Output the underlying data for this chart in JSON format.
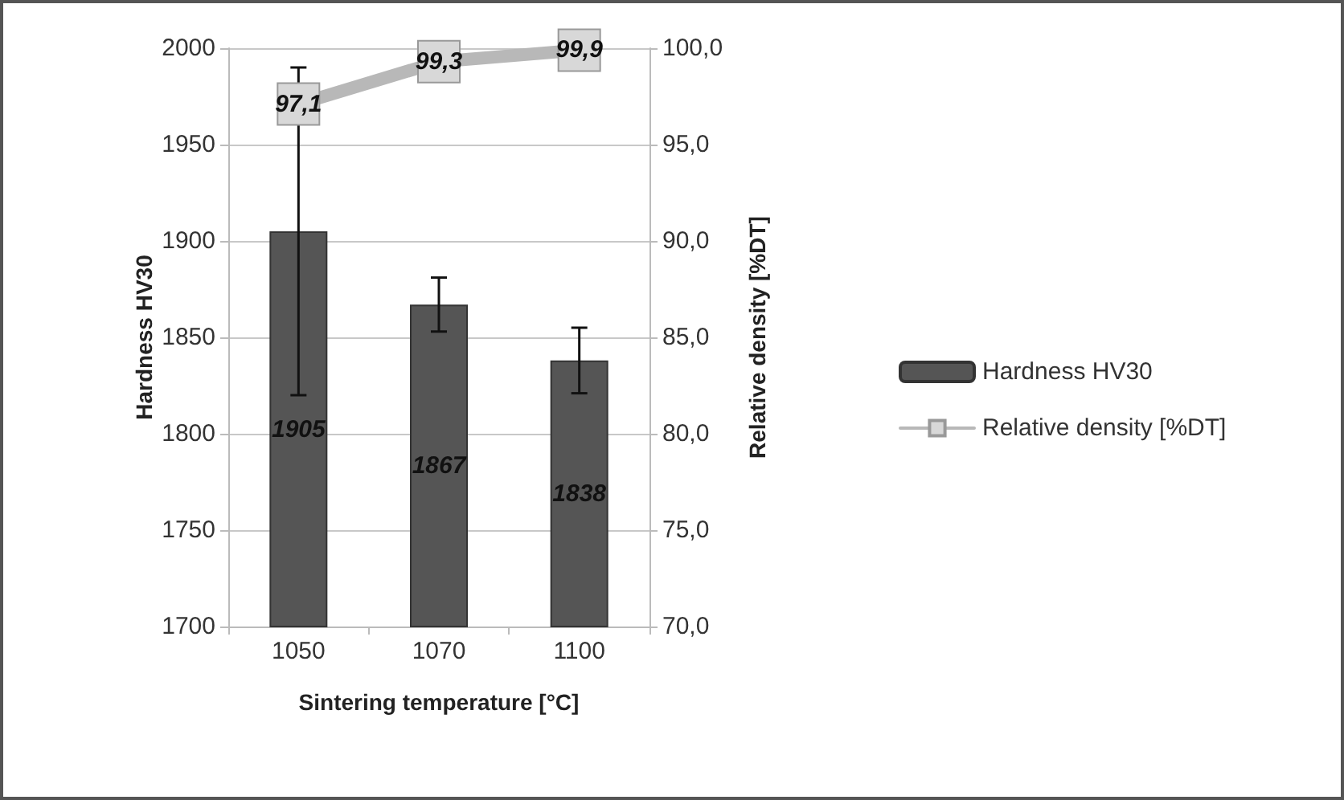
{
  "chart_data": {
    "type": "bar",
    "xlabel": "Sintering temperature [°C]",
    "ylabel": "Hardness HV30",
    "y2label": "Relative density [%DT]",
    "categories": [
      "1050",
      "1070",
      "1100"
    ],
    "series": [
      {
        "name": "Hardness HV30",
        "color": "#555555",
        "values": [
          1905,
          1867,
          1838
        ],
        "errors": [
          85,
          14,
          17
        ]
      },
      {
        "name": "Relative density [%DT]",
        "type": "line",
        "axis": "y2",
        "color": "#b8b8b8",
        "values": [
          97.1,
          99.3,
          99.9
        ],
        "value_labels": [
          "97,1",
          "99,3",
          "99,9"
        ],
        "marker": "square"
      }
    ],
    "ylim": [
      1700,
      2000
    ],
    "yticks": [
      1700,
      1750,
      1800,
      1850,
      1900,
      1950,
      2000
    ],
    "y2lim": [
      70,
      100
    ],
    "y2ticks": [
      {
        "value": 70,
        "label": "70,0"
      },
      {
        "value": 75,
        "label": "75,0"
      },
      {
        "value": 80,
        "label": "80,0"
      },
      {
        "value": 85,
        "label": "85,0"
      },
      {
        "value": 90,
        "label": "90,0"
      },
      {
        "value": 95,
        "label": "95,0"
      },
      {
        "value": 100,
        "label": "100,0"
      }
    ],
    "grid": "y",
    "legend": "right",
    "data_labels": true
  }
}
